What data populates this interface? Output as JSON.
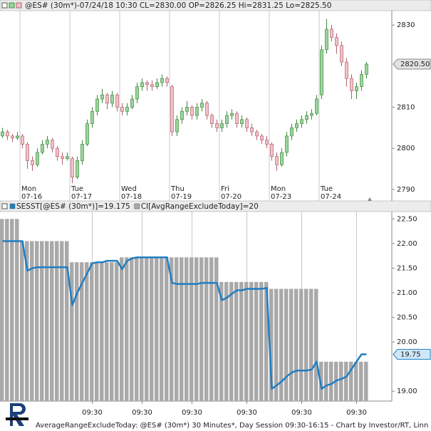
{
  "chart_data": [
    {
      "type": "candlestick",
      "title": "@ES# (30m*)-07/24/18 10:30 CL=2830.00 OP=2826.25 Hi=2831.25 Lo=2825.50",
      "categories": [
        null,
        null,
        null,
        null,
        "Mon 07-16",
        null,
        null,
        null,
        null,
        null,
        null,
        null,
        null,
        null,
        "Tue 07-17",
        null,
        null,
        null,
        null,
        null,
        null,
        null,
        null,
        null,
        "Wed 07-18",
        null,
        null,
        null,
        null,
        null,
        null,
        null,
        null,
        null,
        "Thu 07-19",
        null,
        null,
        null,
        null,
        null,
        null,
        null,
        null,
        null,
        "Fri 07-20",
        null,
        null,
        null,
        null,
        null,
        null,
        null,
        null,
        null,
        "Mon 07-23",
        null,
        null,
        null,
        null,
        null,
        null,
        null,
        null,
        null,
        "Tue 07-24",
        null,
        null,
        null,
        null,
        null,
        null,
        null,
        null,
        null
      ],
      "open": [
        2803,
        2804,
        2803,
        2802.5,
        2803,
        2801,
        2797,
        2796,
        2799,
        2801,
        2802,
        2800,
        2798,
        2797.5,
        2797.5,
        2793,
        2797,
        2801,
        2806,
        2809,
        2812,
        2813,
        2811,
        2813,
        2810,
        2809,
        2810,
        2812,
        2815,
        2816,
        2815.5,
        2815,
        2816,
        2817,
        2815,
        2804,
        2807,
        2809,
        2810,
        2808,
        2810,
        2811,
        2808,
        2806,
        2805,
        2806,
        2808,
        2808.5,
        2806,
        2807,
        2805,
        2804,
        2803,
        2802,
        2801,
        2798,
        2796,
        2799,
        2803,
        2805,
        2806,
        2807,
        2808,
        2808.5,
        2813,
        2824,
        2829,
        2827,
        2825,
        2821,
        2817,
        2814,
        2815,
        2818
      ],
      "high": [
        2805,
        2804.5,
        2803.5,
        2804,
        2803.5,
        2801.5,
        2798,
        2800,
        2802,
        2803,
        2802.5,
        2800.5,
        2799,
        2799,
        2798,
        2798,
        2802,
        2807,
        2810,
        2813,
        2814.5,
        2813.5,
        2814,
        2813.5,
        2811,
        2811,
        2813,
        2816,
        2817,
        2816.5,
        2816.5,
        2817,
        2818,
        2817.5,
        2815.5,
        2808,
        2810,
        2811.5,
        2810.5,
        2811,
        2812,
        2811.5,
        2808.5,
        2807,
        2807,
        2809,
        2809.5,
        2809,
        2808,
        2807.5,
        2806,
        2804.5,
        2803.5,
        2803,
        2801.5,
        2799,
        2800,
        2804,
        2806,
        2807,
        2808,
        2809,
        2809.5,
        2813,
        2825,
        2831.5,
        2830,
        2828,
        2826,
        2822,
        2818,
        2816,
        2819,
        2821
      ],
      "low": [
        2802.5,
        2802,
        2801.5,
        2802,
        2800,
        2795,
        2794.5,
        2795.5,
        2798.5,
        2800,
        2799,
        2797,
        2796,
        2797,
        2791.5,
        2792.5,
        2796,
        2800.5,
        2805,
        2808,
        2811,
        2809.5,
        2810,
        2809,
        2808,
        2808,
        2809.5,
        2811,
        2814,
        2814,
        2814,
        2814.5,
        2815,
        2815,
        2803,
        2803,
        2806,
        2808,
        2807,
        2807,
        2809,
        2807,
        2805,
        2804,
        2804,
        2805,
        2807,
        2805,
        2805,
        2804,
        2803,
        2802,
        2801,
        2800,
        2797,
        2794.5,
        2795.5,
        2798,
        2802,
        2804,
        2805,
        2806,
        2807,
        2808,
        2812,
        2823,
        2826,
        2823,
        2820,
        2815,
        2812,
        2812,
        2814,
        2817
      ],
      "close": [
        2804,
        2803,
        2802.5,
        2803,
        2801,
        2797,
        2796,
        2799,
        2801,
        2802,
        2800,
        2798,
        2797.5,
        2798,
        2793,
        2797,
        2801,
        2806,
        2809,
        2812,
        2813,
        2811,
        2813,
        2810,
        2809,
        2810,
        2812,
        2815,
        2816,
        2815.5,
        2815,
        2816,
        2817,
        2816,
        2804,
        2807,
        2809,
        2810,
        2808,
        2810,
        2811,
        2808,
        2806,
        2805,
        2806,
        2808,
        2808.5,
        2806,
        2807,
        2805,
        2804,
        2803,
        2802,
        2801,
        2798,
        2796,
        2799,
        2803,
        2805,
        2806,
        2807,
        2808,
        2808.5,
        2812,
        2824,
        2829,
        2827,
        2825,
        2821,
        2817,
        2814,
        2815,
        2818,
        2820.5
      ],
      "up_color": "#9ad59a",
      "up_edge": "#3f8a3f",
      "down_color": "#f3c1c8",
      "down_edge": "#b0606e",
      "ylim": [
        2787.2,
        2833.5
      ],
      "yticks": [
        2790,
        2800,
        2810,
        2830
      ],
      "last": {
        "value": 2820.5,
        "label": "2820.50"
      }
    },
    {
      "type": "bar_line",
      "categories": [
        null,
        null,
        null,
        null,
        null,
        null,
        null,
        null,
        null,
        null,
        null,
        null,
        null,
        null,
        null,
        null,
        null,
        null,
        "09:30",
        null,
        null,
        null,
        null,
        null,
        null,
        null,
        null,
        null,
        "09:30",
        null,
        null,
        null,
        null,
        null,
        null,
        null,
        null,
        null,
        "09:30",
        null,
        null,
        null,
        null,
        null,
        null,
        null,
        null,
        null,
        null,
        "09:30",
        null,
        null,
        null,
        null,
        null,
        null,
        null,
        null,
        null,
        null,
        "09:30",
        null,
        null,
        null,
        null,
        null,
        null,
        null,
        null,
        null,
        null,
        "09:30",
        null,
        null
      ],
      "series": [
        {
          "name": "SESST[@ES# (30m*)]=19.175",
          "type": "line",
          "color": "#1f7ec2",
          "values": [
            22.05,
            22.05,
            22.05,
            22.05,
            22.05,
            21.45,
            21.5,
            21.52,
            21.52,
            21.52,
            21.52,
            21.52,
            21.52,
            21.52,
            20.75,
            21.0,
            21.2,
            21.4,
            21.6,
            21.62,
            21.62,
            21.65,
            21.65,
            21.65,
            21.48,
            21.65,
            21.7,
            21.72,
            21.72,
            21.72,
            21.72,
            21.72,
            21.72,
            21.72,
            21.2,
            21.18,
            21.18,
            21.18,
            21.18,
            21.18,
            21.2,
            21.2,
            21.2,
            21.2,
            20.85,
            20.9,
            20.98,
            21.05,
            21.05,
            21.08,
            21.08,
            21.08,
            21.08,
            21.1,
            19.05,
            19.12,
            19.2,
            19.3,
            19.38,
            19.42,
            19.42,
            19.42,
            19.44,
            19.6,
            19.05,
            19.12,
            19.15,
            19.22,
            19.25,
            19.3,
            19.45,
            19.6,
            19.75,
            19.75
          ]
        },
        {
          "name": "CI[AvgRangeExcludeToday]=20",
          "type": "bar",
          "color": "#a9a9a9",
          "values": [
            22.5,
            22.5,
            22.5,
            22.5,
            22.05,
            22.05,
            22.05,
            22.05,
            22.05,
            22.05,
            22.05,
            22.05,
            22.05,
            22.05,
            21.62,
            21.62,
            21.62,
            21.62,
            21.62,
            21.62,
            21.62,
            21.62,
            21.62,
            21.62,
            21.72,
            21.72,
            21.72,
            21.72,
            21.72,
            21.72,
            21.72,
            21.72,
            21.72,
            21.72,
            21.72,
            21.72,
            21.72,
            21.72,
            21.72,
            21.72,
            21.72,
            21.72,
            21.72,
            21.72,
            21.22,
            21.22,
            21.22,
            21.22,
            21.22,
            21.22,
            21.22,
            21.22,
            21.22,
            21.22,
            21.08,
            21.08,
            21.08,
            21.08,
            21.08,
            21.08,
            21.08,
            21.08,
            21.08,
            21.08,
            19.6,
            19.6,
            19.6,
            19.6,
            19.6,
            19.6,
            19.6,
            19.6,
            19.6,
            19.6
          ]
        }
      ],
      "ylim": [
        18.8,
        22.65
      ],
      "yticks": [
        {
          "value": 22.5,
          "label": "22.50"
        },
        {
          "value": 22,
          "label": "22.00"
        },
        {
          "value": 21.5,
          "label": "21.50"
        },
        {
          "value": 21,
          "label": "21.00"
        },
        {
          "value": 20.5,
          "label": "20.50"
        },
        {
          "value": 20,
          "label": "20.00"
        },
        {
          "value": 19,
          "label": "19.00"
        }
      ],
      "last": {
        "value": 19.75,
        "label": "19.75"
      }
    }
  ],
  "footer": "AverageRangeExcludeToday: @ES# (30m*) 30 Minutes*, Day Session 09:30-16:15 - Chart by Investor/RT, Linn Software"
}
